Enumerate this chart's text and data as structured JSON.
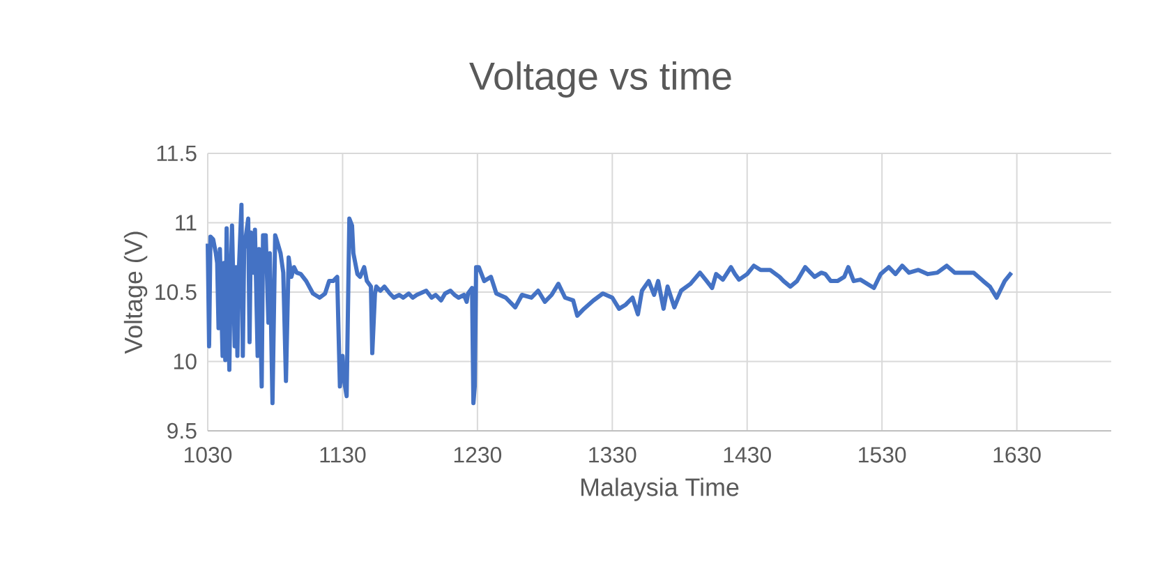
{
  "chart_data": {
    "type": "line",
    "title": "Voltage vs time",
    "xlabel": "Malaysia Time",
    "ylabel": "Voltage (V)",
    "xlim": [
      1030,
      1700
    ],
    "xticks": [
      1030,
      1130,
      1230,
      1330,
      1430,
      1530,
      1630
    ],
    "ylim": [
      9.5,
      11.5
    ],
    "yticks": [
      9.5,
      10,
      10.5,
      11,
      11.5
    ],
    "grid": true,
    "marker": "none",
    "line_style": "solid",
    "series": [
      {
        "color": "#4472c4",
        "x": [
          1030,
          1031,
          1032,
          1034,
          1036,
          1037,
          1038,
          1039,
          1041,
          1042,
          1043,
          1044,
          1046,
          1047,
          1048,
          1050,
          1051,
          1052,
          1053,
          1055,
          1056,
          1057,
          1060,
          1061,
          1062,
          1064,
          1065,
          1067,
          1068,
          1070,
          1071,
          1073,
          1075,
          1076,
          1078,
          1080,
          1081,
          1084,
          1086,
          1088,
          1090,
          1092,
          1094,
          1096,
          1099,
          1103,
          1108,
          1113,
          1117,
          1120,
          1123,
          1126,
          1128,
          1130,
          1131,
          1133,
          1135,
          1137,
          1138,
          1141,
          1143,
          1146,
          1148,
          1151,
          1152,
          1154,
          1155,
          1158,
          1161,
          1165,
          1168,
          1172,
          1175,
          1179,
          1182,
          1185,
          1192,
          1196,
          1199,
          1203,
          1206,
          1210,
          1213,
          1216,
          1220,
          1222,
          1223,
          1226,
          1227,
          1228,
          1229,
          1231,
          1235,
          1240,
          1244,
          1251,
          1258,
          1263,
          1270,
          1275,
          1280,
          1285,
          1290,
          1295,
          1301,
          1304,
          1309,
          1316,
          1323,
          1330,
          1335,
          1340,
          1345,
          1349,
          1352,
          1357,
          1361,
          1364,
          1368,
          1371,
          1376,
          1381,
          1388,
          1395,
          1400,
          1404,
          1407,
          1412,
          1418,
          1421,
          1424,
          1430,
          1435,
          1440,
          1447,
          1454,
          1457,
          1462,
          1467,
          1473,
          1480,
          1485,
          1488,
          1492,
          1497,
          1502,
          1505,
          1509,
          1514,
          1519,
          1524,
          1529,
          1535,
          1540,
          1545,
          1550,
          1557,
          1564,
          1571,
          1578,
          1584,
          1591,
          1598,
          1605,
          1610,
          1615,
          1621,
          1626
        ],
        "values": [
          10.85,
          10.11,
          10.9,
          10.88,
          10.78,
          10.71,
          10.24,
          10.81,
          10.04,
          10.71,
          10.01,
          10.96,
          9.94,
          10.58,
          10.98,
          10.11,
          10.68,
          10.04,
          10.64,
          11.13,
          10.04,
          10.81,
          11.03,
          10.14,
          10.93,
          10.64,
          10.95,
          10.04,
          10.81,
          9.82,
          10.91,
          10.91,
          10.28,
          10.78,
          9.7,
          10.91,
          10.88,
          10.78,
          10.64,
          9.86,
          10.75,
          10.61,
          10.68,
          10.64,
          10.63,
          10.58,
          10.49,
          10.46,
          10.49,
          10.58,
          10.58,
          10.61,
          9.82,
          10.04,
          9.87,
          9.75,
          11.03,
          10.98,
          10.78,
          10.63,
          10.61,
          10.68,
          10.58,
          10.54,
          10.06,
          10.49,
          10.54,
          10.51,
          10.54,
          10.49,
          10.46,
          10.48,
          10.46,
          10.49,
          10.46,
          10.48,
          10.51,
          10.46,
          10.48,
          10.44,
          10.49,
          10.51,
          10.48,
          10.46,
          10.48,
          10.43,
          10.49,
          10.53,
          9.7,
          9.82,
          10.68,
          10.68,
          10.58,
          10.61,
          10.49,
          10.46,
          10.39,
          10.48,
          10.46,
          10.51,
          10.43,
          10.48,
          10.56,
          10.46,
          10.44,
          10.33,
          10.38,
          10.44,
          10.49,
          10.46,
          10.38,
          10.41,
          10.46,
          10.34,
          10.51,
          10.58,
          10.48,
          10.58,
          10.38,
          10.54,
          10.39,
          10.51,
          10.56,
          10.64,
          10.58,
          10.53,
          10.63,
          10.59,
          10.68,
          10.63,
          10.59,
          10.63,
          10.69,
          10.66,
          10.66,
          10.61,
          10.58,
          10.54,
          10.58,
          10.68,
          10.61,
          10.64,
          10.63,
          10.58,
          10.58,
          10.61,
          10.68,
          10.58,
          10.59,
          10.56,
          10.53,
          10.63,
          10.68,
          10.63,
          10.69,
          10.64,
          10.66,
          10.63,
          10.64,
          10.69,
          10.64,
          10.64,
          10.64,
          10.58,
          10.54,
          10.46,
          10.58,
          10.64
        ]
      }
    ]
  }
}
